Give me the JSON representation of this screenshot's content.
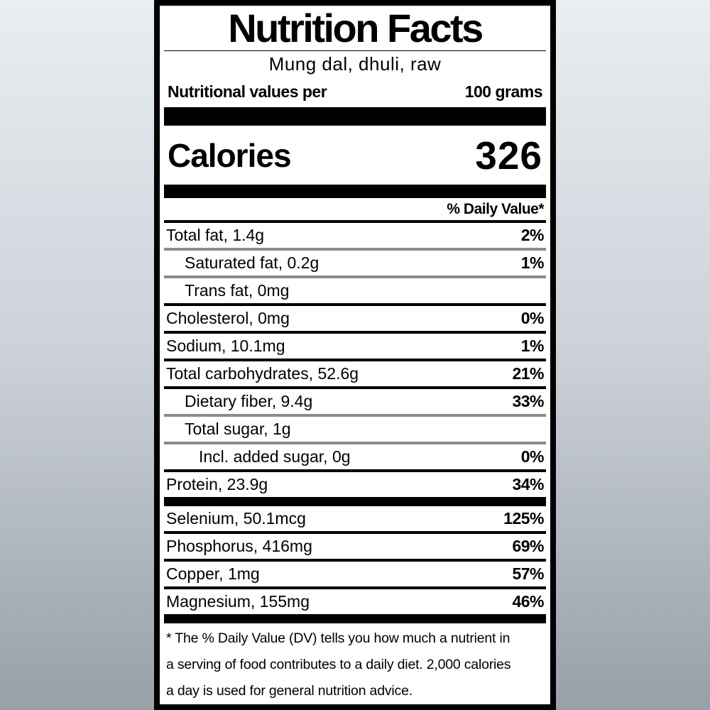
{
  "label": {
    "title": "Nutrition Facts",
    "product": "Mung dal, dhuli, raw",
    "serving": {
      "label": "Nutritional values per",
      "amount": "100 grams"
    },
    "calories": {
      "label": "Calories",
      "value": "326"
    },
    "daily_value_header": "% Daily Value*",
    "nutrients": [
      {
        "text": "Total fat, 1.4g",
        "dv": "2%"
      },
      {
        "text": "Saturated fat, 0.2g",
        "dv": "1%"
      },
      {
        "text": "Trans fat, 0mg",
        "dv": ""
      },
      {
        "text": "Cholesterol, 0mg",
        "dv": "0%"
      },
      {
        "text": "Sodium, 10.1mg",
        "dv": "1%"
      },
      {
        "text": "Total carbohydrates, 52.6g",
        "dv": "21%"
      },
      {
        "text": "Dietary fiber, 9.4g",
        "dv": "33%"
      },
      {
        "text": "Total sugar, 1g",
        "dv": ""
      },
      {
        "text": "Incl. added sugar, 0g",
        "dv": "0%"
      },
      {
        "text": "Protein, 23.9g",
        "dv": "34%"
      }
    ],
    "minerals": [
      {
        "text": "Selenium, 50.1mcg",
        "dv": "125%"
      },
      {
        "text": "Phosphorus, 416mg",
        "dv": "69%"
      },
      {
        "text": "Copper, 1mg",
        "dv": "57%"
      },
      {
        "text": "Magnesium, 155mg",
        "dv": "46%"
      }
    ],
    "footnote": {
      "line1": "* The % Daily Value (DV) tells you how much a nutrient in",
      "line2": "a serving of food contributes to a daily diet. 2,000 calories",
      "line3": "a day is used for general nutrition advice."
    }
  },
  "colors": {
    "ink": "#000000",
    "panel": "#ffffff",
    "divider_gray": "#8b8b8b",
    "background_top": "#e9eef2",
    "background_bottom": "#989fa7"
  }
}
